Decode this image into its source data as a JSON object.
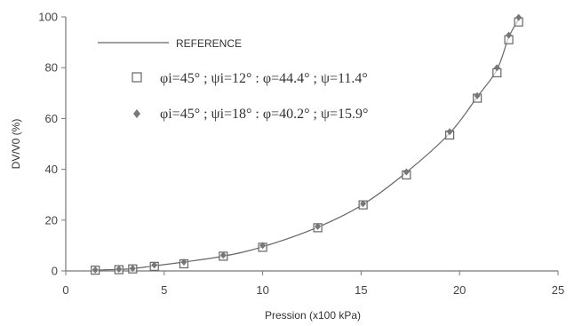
{
  "chart_data": {
    "type": "scatter",
    "xlabel": "Pression (x100 kPa)",
    "ylabel": "DV/V0 (%)",
    "xlim": [
      0,
      25
    ],
    "ylim": [
      0,
      100
    ],
    "x_ticks": [
      "0",
      "5",
      "10",
      "15",
      "20",
      "25"
    ],
    "y_ticks": [
      "0",
      "20",
      "40",
      "60",
      "80",
      "100"
    ],
    "grid": false,
    "legend_position": "top-left",
    "series": [
      {
        "name": "REFERENCE",
        "kind": "line",
        "color": "#666666",
        "x": [
          1.5,
          2.7,
          3.4,
          4.5,
          6.0,
          8.0,
          10.0,
          12.8,
          15.1,
          17.3,
          19.5,
          20.9,
          21.9,
          22.5,
          23.0
        ],
        "y": [
          0.3,
          0.6,
          0.9,
          2.0,
          3.5,
          5.8,
          9.5,
          17.2,
          26.2,
          38.8,
          54.2,
          68.5,
          79.2,
          92.0,
          99.0
        ]
      },
      {
        "name": "φi=45° ; ψi=12° :  φ=44.4° ; ψ=11.4°",
        "kind": "marker",
        "marker": "open-square",
        "color": "#666666",
        "x": [
          1.5,
          2.7,
          3.4,
          4.5,
          6.0,
          8.0,
          10.0,
          12.8,
          15.1,
          17.3,
          19.5,
          20.9,
          21.9,
          22.5,
          23.0
        ],
        "y": [
          0.3,
          0.5,
          0.8,
          1.8,
          2.8,
          5.8,
          9.3,
          17.0,
          26.0,
          37.8,
          53.5,
          68.0,
          78.0,
          91.0,
          98.0
        ]
      },
      {
        "name": "φi=45° ; ψi=18°  :  φ=40.2° ; ψ=15.9°",
        "kind": "marker",
        "marker": "filled-diamond",
        "color": "#777777",
        "x": [
          1.5,
          2.7,
          3.4,
          4.5,
          6.0,
          8.0,
          10.0,
          12.8,
          15.1,
          17.3,
          19.5,
          20.9,
          21.9,
          22.5,
          23.0
        ],
        "y": [
          0.4,
          0.7,
          1.0,
          2.3,
          3.5,
          6.2,
          10.0,
          17.5,
          26.5,
          39.0,
          54.8,
          69.0,
          80.0,
          92.8,
          99.8
        ]
      }
    ]
  }
}
